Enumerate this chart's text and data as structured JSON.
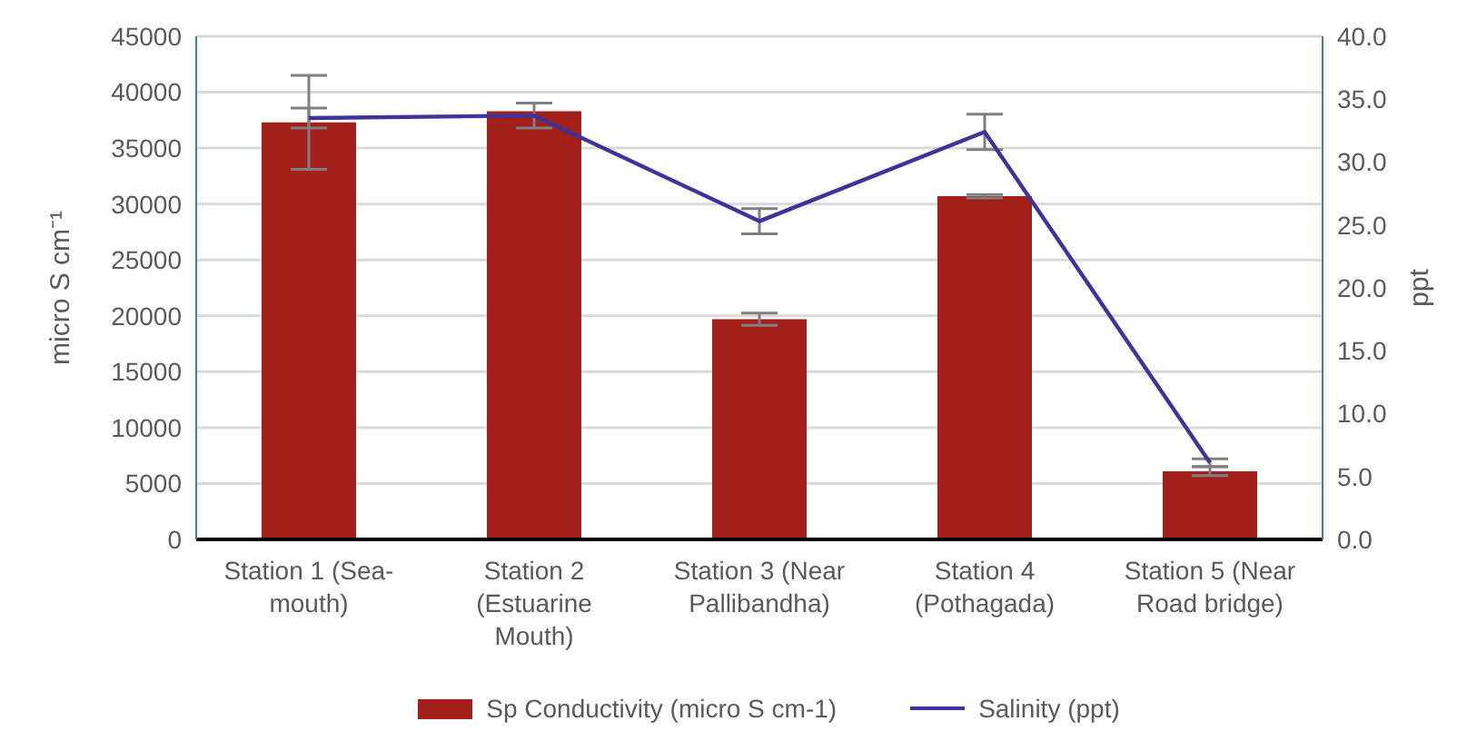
{
  "chart_data": {
    "type": "bar",
    "categories": [
      "Station 1 (Sea-mouth)",
      "Station 2 (Estuarine Mouth)",
      "Station 3 (Near Pallibandha)",
      "Station 4 (Pothagada)",
      "Station 5 (Near Road bridge)"
    ],
    "ylabel": "micro S cm⁻¹",
    "y2label": "ppt",
    "series": [
      {
        "name": "Sp Conductivity (micro S cm-1)",
        "color": "#a31f1a",
        "values": [
          37300,
          38300,
          19700,
          30700,
          6100
        ],
        "errors": [
          4200,
          null,
          550,
          150,
          400
        ]
      },
      {
        "name": "Salinity (ppt)",
        "type": "line",
        "axis": "y2",
        "color": "#3f3399",
        "values": [
          33.5,
          33.7,
          25.3,
          32.4,
          6.1
        ],
        "errors": [
          0.8,
          1.0,
          1.0,
          1.4,
          0.3
        ]
      }
    ],
    "ylim": [
      0,
      45000
    ],
    "yticks": [
      0,
      5000,
      10000,
      15000,
      20000,
      25000,
      30000,
      35000,
      40000,
      45000
    ],
    "y2lim": [
      0,
      40
    ],
    "y2ticks": [
      {
        "value": 0,
        "label": "0.0"
      },
      {
        "value": 5,
        "label": "5.0"
      },
      {
        "value": 10,
        "label": "10.0"
      },
      {
        "value": 15,
        "label": "15.0"
      },
      {
        "value": 20,
        "label": "20.0"
      },
      {
        "value": 25,
        "label": "25.0"
      },
      {
        "value": 30,
        "label": "30.0"
      },
      {
        "value": 35,
        "label": "35.0"
      },
      {
        "value": 40,
        "label": "40.0"
      }
    ],
    "grid": "y",
    "legend": "bottom",
    "marker": "none"
  }
}
